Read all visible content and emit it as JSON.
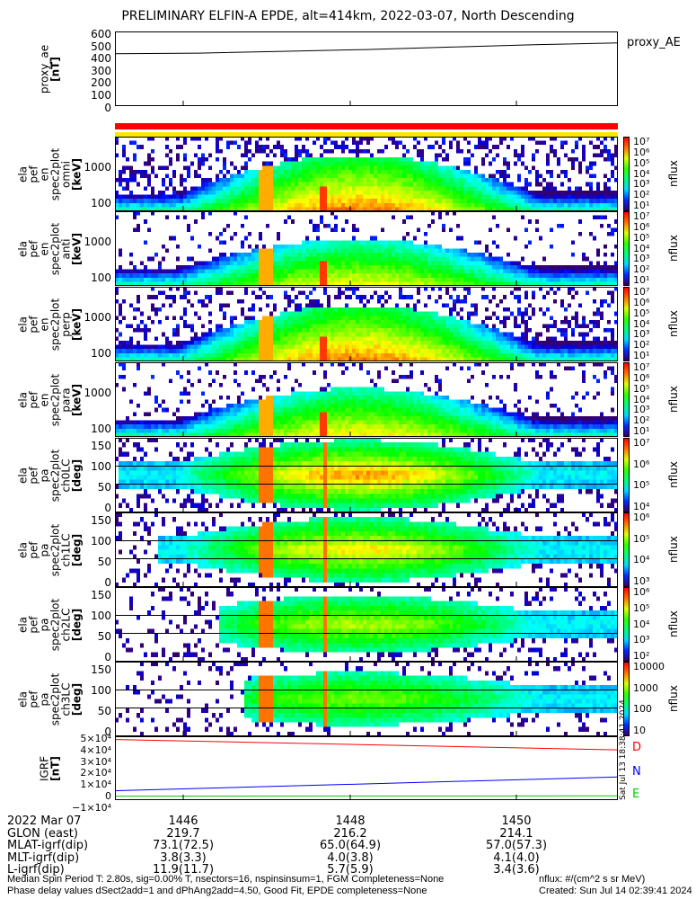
{
  "title": "PRELIMINARY ELFIN-A EPDE, alt=414km, 2022-03-07, North Descending",
  "proxy": {
    "ylabel": [
      "proxy_ae",
      "[nT]"
    ],
    "yticks": [
      "600",
      "500",
      "400",
      "300",
      "200",
      "100",
      "0"
    ],
    "legend": "proxy_AE",
    "values": [
      435,
      440,
      455,
      470,
      490,
      510,
      525
    ],
    "ylim": [
      0,
      620
    ]
  },
  "colors": {
    "quality_bar_top": "#ff0000",
    "quality_bar_bottom": "#ffe600",
    "D": "#ff0000",
    "N": "#0000ff",
    "E": "#00cc00"
  },
  "energy_panels": [
    {
      "ylabel": [
        "ela",
        "pef",
        "en",
        "spec2plot",
        "omni",
        "[keV]"
      ],
      "kind": "omni"
    },
    {
      "ylabel": [
        "ela",
        "pef",
        "en",
        "spec2plot",
        "anti",
        "[keV]"
      ],
      "kind": "anti"
    },
    {
      "ylabel": [
        "ela",
        "pef",
        "en",
        "spec2plot",
        "perp",
        "[keV]"
      ],
      "kind": "perp"
    },
    {
      "ylabel": [
        "ela",
        "pef",
        "en",
        "spec2plot",
        "para",
        "[keV]"
      ],
      "kind": "para"
    }
  ],
  "energy_yticks": [
    "1000",
    "100"
  ],
  "pa_panels": [
    {
      "ylabel": [
        "ela",
        "pef",
        "pa",
        "spec2plot",
        "ch0LC",
        "[deg]"
      ]
    },
    {
      "ylabel": [
        "ela",
        "pef",
        "pa",
        "spec2plot",
        "ch1LC",
        "[deg]"
      ]
    },
    {
      "ylabel": [
        "ela",
        "pef",
        "pa",
        "spec2plot",
        "ch2LC",
        "[deg]"
      ]
    },
    {
      "ylabel": [
        "ela",
        "pef",
        "pa",
        "spec2plot",
        "ch3LC",
        "[deg]"
      ]
    }
  ],
  "pa_yticks": [
    "150",
    "100",
    "50",
    "0"
  ],
  "colorbars": [
    {
      "ticks": [
        "10⁷",
        "10⁶",
        "10⁵",
        "10⁴",
        "10³",
        "10²",
        "10¹"
      ],
      "label": "nflux"
    },
    {
      "ticks": [
        "10⁷",
        "10⁶",
        "10⁵",
        "10⁴",
        "10³",
        "10²",
        "10¹"
      ],
      "label": "nflux"
    },
    {
      "ticks": [
        "10⁷",
        "10⁶",
        "10⁵",
        "10⁴",
        "10³",
        "10²",
        "10¹"
      ],
      "label": "nflux"
    },
    {
      "ticks": [
        "10⁷",
        "10⁶",
        "10⁵",
        "10⁴",
        "10³",
        "10²",
        "10¹"
      ],
      "label": "nflux"
    },
    {
      "ticks": [
        "10⁷",
        "10⁶",
        "10⁵",
        "10⁴"
      ],
      "label": "nflux"
    },
    {
      "ticks": [
        "10⁶",
        "10⁵",
        "10⁴",
        "10³"
      ],
      "label": "nflux"
    },
    {
      "ticks": [
        "10⁶",
        "10⁵",
        "10⁴",
        "10³",
        "10²"
      ],
      "label": "nflux"
    },
    {
      "ticks": [
        "10000",
        "1000",
        "100",
        "10"
      ],
      "label": "nflux"
    }
  ],
  "igrf": {
    "ylabel": [
      "IGRF",
      "[nT]"
    ],
    "yticks": [
      "5×10⁴",
      "4×10⁴",
      "3×10⁴",
      "2×10⁴",
      "1×10⁴",
      "0",
      "−1×10⁴"
    ],
    "legend": [
      "D",
      "N",
      "E"
    ],
    "D": [
      49500,
      40500
    ],
    "N": [
      5000,
      17000
    ],
    "E": [
      300,
      600
    ],
    "stamp": "Sat Jul 13 18:38:41 2024"
  },
  "xaxis": {
    "rows": [
      {
        "label": "2022 Mar 07",
        "values": [
          "1446",
          "1448",
          "1450"
        ]
      },
      {
        "label": "GLON (east)",
        "values": [
          "219.7",
          "216.2",
          "214.1"
        ]
      },
      {
        "label": "MLAT-igrf(dip)",
        "values": [
          "73.1(72.5)",
          "65.0(64.9)",
          "57.0(57.3)"
        ]
      },
      {
        "label": "MLT-igrf(dip)",
        "values": [
          "3.8(3.3)",
          "4.0(3.8)",
          "4.1(4.0)"
        ]
      },
      {
        "label": "L-igrf(dip)",
        "values": [
          "11.9(11.7)",
          "5.7(5.9)",
          "3.4(3.6)"
        ]
      }
    ]
  },
  "footer": {
    "line1": "Median Spin Period T: 2.80s, sig=0.00% T, nsectors=16, nspinsinsum=1, FGM Completeness=None",
    "line2": "Phase delay values dSect2add=1 and dPhAng2add=4.50, Good Fit, EPDE completeness=None",
    "units": "nflux: #/(cm^2 s sr MeV)",
    "created": "Created: Sun Jul 14 02:39:41 2024"
  }
}
